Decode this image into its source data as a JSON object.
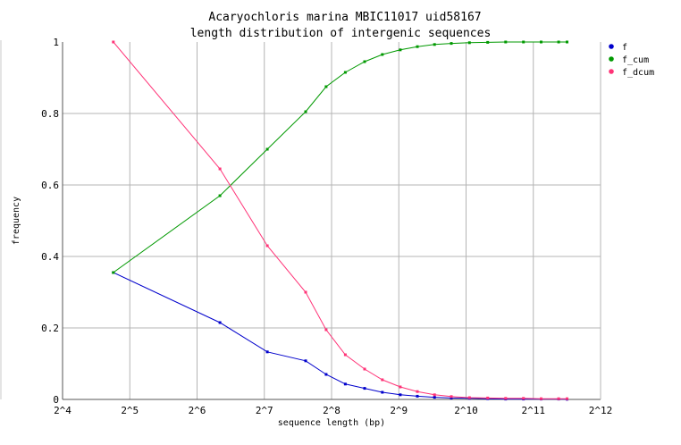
{
  "chart_data": {
    "type": "line",
    "title": "Acaryochloris marina MBIC11017 uid58167",
    "subtitle": "length distribution of intergenic sequences",
    "xlabel": "sequence length (bp)",
    "ylabel": "frequency",
    "x_scale": "log2",
    "xlim": [
      16,
      4096
    ],
    "ylim": [
      0,
      1
    ],
    "grid": true,
    "legend_position": "right",
    "x_ticks": [
      "2^4",
      "2^5",
      "2^6",
      "2^7",
      "2^8",
      "2^9",
      "2^10",
      "2^11",
      "2^12"
    ],
    "y_ticks": [
      "0",
      "0.2",
      "0.4",
      "0.6",
      "0.8",
      "1"
    ],
    "x": [
      27,
      81,
      132,
      196,
      242,
      295,
      360,
      432,
      520,
      620,
      740,
      880,
      1060,
      1280,
      1540,
      1850,
      2220,
      2660,
      2900
    ],
    "series": [
      {
        "name": "f",
        "color": "#0000cc",
        "values": [
          0.355,
          0.215,
          0.133,
          0.108,
          0.07,
          0.043,
          0.031,
          0.02,
          0.013,
          0.009,
          0.006,
          0.004,
          0.003,
          0.002,
          0.001,
          0.001,
          0.001,
          0.001,
          0.0005
        ]
      },
      {
        "name": "f_cum",
        "color": "#009900",
        "values": [
          0.355,
          0.57,
          0.7,
          0.805,
          0.875,
          0.915,
          0.945,
          0.965,
          0.978,
          0.987,
          0.993,
          0.996,
          0.998,
          0.999,
          1.0,
          1.0,
          1.0,
          1.0,
          1.0
        ]
      },
      {
        "name": "f_dcum",
        "color": "#ff3377",
        "values": [
          1.0,
          0.645,
          0.43,
          0.3,
          0.195,
          0.125,
          0.085,
          0.055,
          0.035,
          0.022,
          0.013,
          0.008,
          0.005,
          0.004,
          0.003,
          0.003,
          0.002,
          0.002,
          0.002
        ]
      }
    ]
  }
}
